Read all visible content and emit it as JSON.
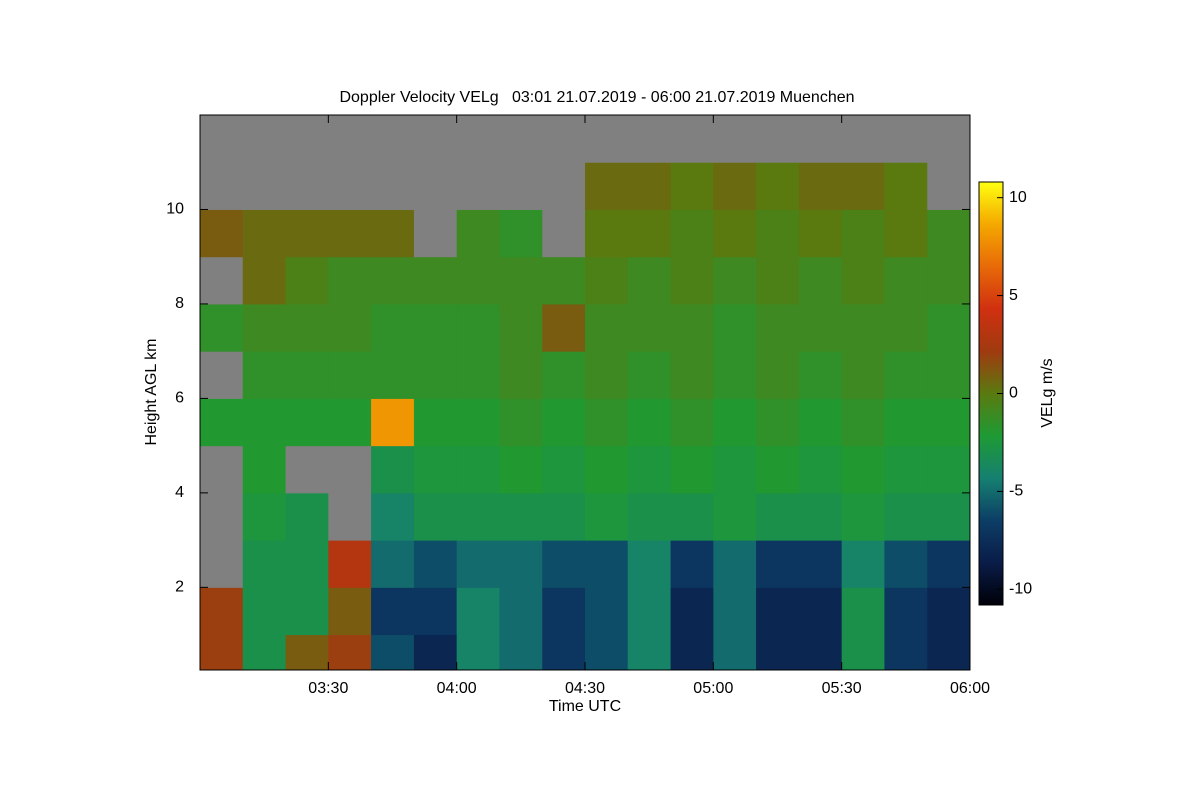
{
  "chart_data": {
    "type": "heatmap",
    "title": "Doppler Velocity VELg   03:01 21.07.2019 - 06:00 21.07.2019 Muenchen",
    "xlabel": "Time UTC",
    "ylabel": "Height AGL km",
    "colorbar_label": "VELg m/s",
    "x": [
      3.083,
      3.25,
      3.417,
      3.583,
      3.75,
      3.917,
      4.083,
      4.25,
      4.417,
      4.583,
      4.75,
      4.917,
      5.083,
      5.25,
      5.417,
      5.583,
      5.75,
      5.917
    ],
    "y": [
      0.5,
      1.5,
      2.5,
      3.5,
      4.5,
      5.5,
      6.5,
      7.5,
      8.5,
      9.5,
      10.5,
      11.5
    ],
    "values": [
      [
        2,
        -3,
        1,
        2,
        -6,
        -8,
        -4,
        -5,
        -7,
        -6,
        -4,
        -8,
        -5,
        -8,
        -8,
        -3,
        -7,
        -8
      ],
      [
        2,
        -3,
        -3,
        1,
        -7,
        -7,
        -4,
        -5,
        -7,
        -6,
        -4,
        -8,
        -5,
        -8,
        -8,
        -3,
        -7,
        -8
      ],
      [
        null,
        -3,
        -3,
        3,
        -5,
        -6,
        -5,
        -5,
        -6,
        -6,
        -4,
        -7,
        -5,
        -7,
        -7,
        -4,
        -6,
        -7
      ],
      [
        null,
        -2.5,
        -3,
        null,
        -4,
        -3,
        -3,
        -3,
        -3,
        -2.5,
        -3,
        -3,
        -2.5,
        -3,
        -3,
        -2.5,
        -3,
        -3
      ],
      [
        null,
        -2,
        null,
        null,
        -3,
        -2.5,
        -2.5,
        -2,
        -2.5,
        -2,
        -2.5,
        -2,
        -2.5,
        -2,
        -2.5,
        -2,
        -2.5,
        -2.5
      ],
      [
        -2,
        -2,
        -2,
        -2,
        8,
        -2,
        -2,
        -1.5,
        -2,
        -1.5,
        -2,
        -1.5,
        -2,
        -1.5,
        -2,
        -1.5,
        -2,
        -2
      ],
      [
        null,
        -1.5,
        -1.5,
        -1.5,
        -1.5,
        -1.5,
        -1.5,
        -1,
        -1.5,
        -1,
        -1.5,
        -1,
        -1.5,
        -1,
        -1.5,
        -1,
        -1.5,
        -1.5
      ],
      [
        -1.5,
        -1,
        -1,
        -1,
        -1.5,
        -1.5,
        -1.5,
        -1,
        1,
        -1,
        -1,
        -1,
        -1.5,
        -1,
        -1,
        -1,
        -1,
        -1.5
      ],
      [
        null,
        0.5,
        -0.5,
        -1,
        -1,
        -1,
        -1,
        -1,
        -1,
        -0.5,
        -1,
        -0.5,
        -1,
        -0.5,
        -1,
        -0.5,
        -1,
        -1
      ],
      [
        1,
        0.5,
        0.5,
        0.5,
        0.5,
        null,
        -1,
        -1.5,
        null,
        0,
        0,
        -0.5,
        0,
        -0.5,
        0,
        -0.5,
        0,
        -1
      ],
      [
        null,
        null,
        null,
        null,
        null,
        null,
        null,
        null,
        null,
        0.5,
        0.5,
        0,
        0.5,
        0,
        0.5,
        0.5,
        0,
        null
      ],
      [
        null,
        null,
        null,
        null,
        null,
        null,
        null,
        null,
        null,
        null,
        null,
        null,
        null,
        null,
        null,
        null,
        null,
        null
      ]
    ],
    "xlim": [
      3,
      6
    ],
    "ylim": [
      0.25,
      12
    ],
    "xticks": [
      {
        "value": 3.5,
        "label": "03:30"
      },
      {
        "value": 4,
        "label": "04:00"
      },
      {
        "value": 4.5,
        "label": "04:30"
      },
      {
        "value": 5,
        "label": "05:00"
      },
      {
        "value": 5.5,
        "label": "05:30"
      },
      {
        "value": 6,
        "label": "06:00"
      }
    ],
    "yticks": [
      2,
      4,
      6,
      8,
      10
    ],
    "zlim": [
      -10.8,
      10.8
    ],
    "zticks": [
      -10,
      -5,
      0,
      5,
      10
    ],
    "colormap": [
      "#000008",
      "#0a1c48",
      "#0c3e66",
      "#168070",
      "#1e9a34",
      "#5a7a10",
      "#a03a10",
      "#d03010",
      "#e86a08",
      "#f4a800",
      "#ffff10"
    ],
    "missing_color": "#808080"
  }
}
